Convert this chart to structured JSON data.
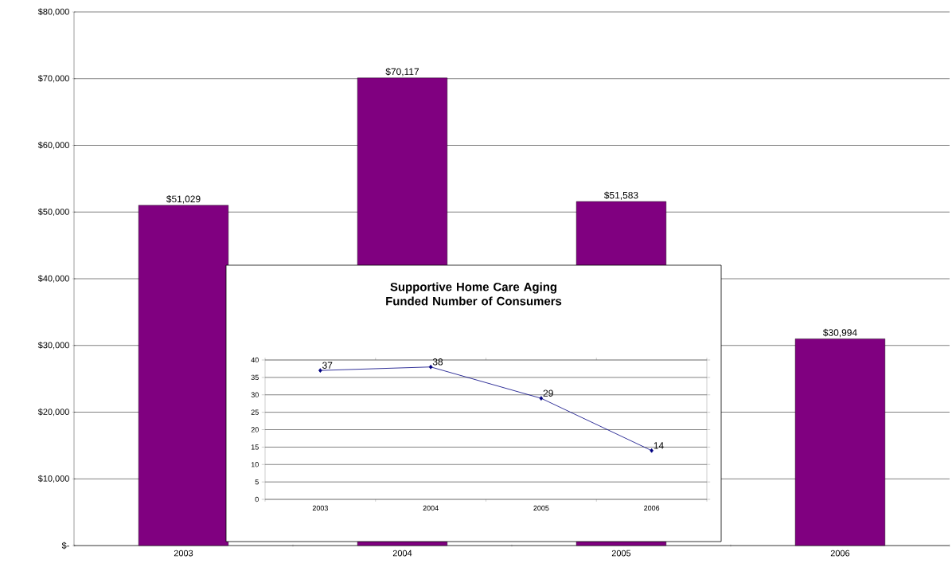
{
  "chart_data": [
    {
      "type": "bar",
      "categories": [
        "2003",
        "2004",
        "2005",
        "2006"
      ],
      "values": [
        51029,
        70117,
        51583,
        30994
      ],
      "value_labels": [
        "$51,029",
        "$70,117",
        "$51,583",
        "$30,994"
      ],
      "color": "#800080",
      "ylim": [
        0,
        80000
      ],
      "yticks": [
        {
          "value": 0,
          "label": "$-"
        },
        {
          "value": 10000,
          "label": "$10,000"
        },
        {
          "value": 20000,
          "label": "$20,000"
        },
        {
          "value": 30000,
          "label": "$30,000"
        },
        {
          "value": 40000,
          "label": "$40,000"
        },
        {
          "value": 50000,
          "label": "$50,000"
        },
        {
          "value": 60000,
          "label": "$60,000"
        },
        {
          "value": 70000,
          "label": "$70,000"
        },
        {
          "value": 80000,
          "label": "$80,000"
        }
      ],
      "grid": "y"
    },
    {
      "type": "line",
      "title": "Supportive Home Care Aging Funded Number of Consumers",
      "categories": [
        "2003",
        "2004",
        "2005",
        "2006"
      ],
      "values": [
        37,
        38,
        29,
        14
      ],
      "color": "#000080",
      "ylim": [
        0,
        40
      ],
      "yticks": [
        0,
        5,
        10,
        15,
        20,
        25,
        30,
        35,
        40
      ],
      "grid": "y",
      "marker": "diamond",
      "data_labels": true
    }
  ]
}
